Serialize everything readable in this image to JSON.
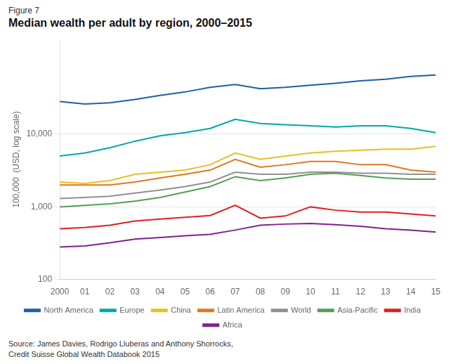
{
  "chart_data": {
    "type": "line",
    "subtitle": "Figure 7",
    "title": "Median wealth per adult by region, 2000–2015",
    "ylabel": "100,000  (USD, log scale)",
    "annotations": [
      "Source: James Davies, Rodrigo Lluberas and Anthony Shorrocks,",
      "Credit Suisse Global Wealth Databook 2015"
    ],
    "x": [
      2000,
      2001,
      2002,
      2003,
      2004,
      2005,
      2006,
      2007,
      2008,
      2009,
      2010,
      2011,
      2012,
      2013,
      2014,
      2015
    ],
    "series": [
      {
        "name": "North America",
        "color": "#1f5fa6",
        "values": [
          28000,
          26000,
          27000,
          30000,
          34000,
          38000,
          44000,
          48000,
          42000,
          44000,
          47000,
          50000,
          54000,
          57000,
          62000,
          65000
        ]
      },
      {
        "name": "Europe",
        "color": "#00a8a8",
        "values": [
          5000,
          5500,
          6500,
          8000,
          9500,
          10500,
          12000,
          16000,
          14000,
          13500,
          13000,
          12500,
          13000,
          13000,
          12000,
          10500
        ]
      },
      {
        "name": "China",
        "color": "#e8c020",
        "values": [
          2200,
          2100,
          2300,
          2800,
          3000,
          3200,
          3800,
          5500,
          4500,
          5000,
          5500,
          5800,
          6000,
          6200,
          6200,
          6800
        ]
      },
      {
        "name": "Latin America",
        "color": "#e07820",
        "values": [
          2000,
          2000,
          2000,
          2200,
          2500,
          2800,
          3200,
          4500,
          3500,
          3800,
          4200,
          4200,
          3800,
          3800,
          3200,
          3000
        ]
      },
      {
        "name": "World",
        "color": "#909090",
        "values": [
          1300,
          1350,
          1400,
          1550,
          1700,
          1900,
          2200,
          3000,
          2800,
          2800,
          3000,
          3000,
          2900,
          2900,
          2800,
          2800
        ]
      },
      {
        "name": "Asia-Pacific",
        "color": "#50a050",
        "values": [
          1000,
          1050,
          1100,
          1200,
          1350,
          1600,
          1900,
          2600,
          2300,
          2500,
          2800,
          2900,
          2700,
          2500,
          2400,
          2400
        ]
      },
      {
        "name": "India",
        "color": "#e02020",
        "values": [
          500,
          520,
          560,
          640,
          680,
          720,
          760,
          1050,
          700,
          750,
          1000,
          900,
          850,
          850,
          800,
          750
        ]
      },
      {
        "name": "Africa",
        "color": "#802090",
        "values": [
          280,
          290,
          320,
          360,
          380,
          400,
          420,
          480,
          560,
          580,
          590,
          570,
          540,
          500,
          480,
          450
        ]
      }
    ],
    "xlim": [
      2000,
      2015
    ],
    "xticks": [
      2000,
      {
        "value": 2001,
        "label": "01"
      },
      {
        "value": 2002,
        "label": "02"
      },
      {
        "value": 2003,
        "label": "03"
      },
      {
        "value": 2004,
        "label": "04"
      },
      {
        "value": 2005,
        "label": "05"
      },
      {
        "value": 2006,
        "label": "06"
      },
      {
        "value": 2007,
        "label": "07"
      },
      {
        "value": 2008,
        "label": "08"
      },
      {
        "value": 2009,
        "label": "09"
      },
      {
        "value": 2010,
        "label": "10"
      },
      {
        "value": 2011,
        "label": "11"
      },
      {
        "value": 2012,
        "label": "12"
      },
      {
        "value": 2013,
        "label": "13"
      },
      {
        "value": 2014,
        "label": "14"
      },
      {
        "value": 2015,
        "label": "15"
      }
    ],
    "ylim": [
      100,
      200000
    ],
    "yticks": [
      100,
      {
        "value": 1000,
        "label": "1,000"
      },
      {
        "value": 10000,
        "label": "10,000"
      }
    ],
    "log": "y",
    "grid": "y",
    "legend": "bottom"
  }
}
